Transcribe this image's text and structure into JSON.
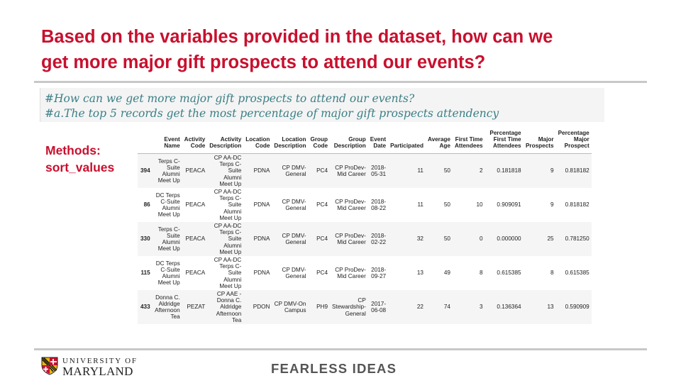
{
  "slide": {
    "title_lines": [
      "Based on the variables provided in the dataset, how can we",
      "get more major gift prospects to attend our events?"
    ],
    "code_lines": [
      "#How can we get more major gift prospects to attend our events?",
      "#a.The top 5 records get the most percentage of major gift prospects attendency"
    ],
    "methods_lines": [
      "Methods:",
      "sort_values"
    ],
    "footer": {
      "logo_line1": "UNIVERSITY OF",
      "logo_line2": "MARYLAND",
      "tagline": "FEARLESS IDEAS"
    },
    "colors": {
      "accent": "#c8102e",
      "code_text": "#3b7f86",
      "rule": "#c8c8c8"
    }
  },
  "table": {
    "headers": [
      "",
      "Event Name",
      "Activity Code",
      "Activity Description",
      "Location Code",
      "Location Description",
      "Group Code",
      "Group Description",
      "Event Date",
      "Participated",
      "Average Age",
      "First Time Attendees",
      "Percentage First Time Attendees",
      "Major Prospects",
      "Percentage Major Prospect"
    ],
    "rows": [
      [
        "394",
        "Terps C-Suite Alumni Meet Up",
        "PEACA",
        "CP AA-DC Terps C-Suite Alumni Meet Up",
        "PDNA",
        "CP DMV-General",
        "PC4",
        "CP ProDev-Mid Career",
        "2018-05-31",
        "11",
        "50",
        "2",
        "0.181818",
        "9",
        "0.818182"
      ],
      [
        "86",
        "DC Terps C-Suite Alumni Meet Up",
        "PEACA",
        "CP AA-DC Terps C-Suite Alumni Meet Up",
        "PDNA",
        "CP DMV-General",
        "PC4",
        "CP ProDev-Mid Career",
        "2018-08-22",
        "11",
        "50",
        "10",
        "0.909091",
        "9",
        "0.818182"
      ],
      [
        "330",
        "Terps C-Suite Alumni Meet Up",
        "PEACA",
        "CP AA-DC Terps C-Suite Alumni Meet Up",
        "PDNA",
        "CP DMV-General",
        "PC4",
        "CP ProDev-Mid Career",
        "2018-02-22",
        "32",
        "50",
        "0",
        "0.000000",
        "25",
        "0.781250"
      ],
      [
        "115",
        "DC Terps C-Suite Alumni Meet Up",
        "PEACA",
        "CP AA-DC Terps C-Suite Alumni Meet Up",
        "PDNA",
        "CP DMV-General",
        "PC4",
        "CP ProDev-Mid Career",
        "2018-09-27",
        "13",
        "49",
        "8",
        "0.615385",
        "8",
        "0.615385"
      ],
      [
        "433",
        "Donna C. Aldridge Afternoon Tea",
        "PEZAT",
        "CP AAE - Donna C. Aldridge Afternoon Tea",
        "PDON",
        "CP DMV-On Campus",
        "PH9",
        "CP Stewardship-General",
        "2017-06-08",
        "22",
        "74",
        "3",
        "0.136364",
        "13",
        "0.590909"
      ]
    ]
  }
}
